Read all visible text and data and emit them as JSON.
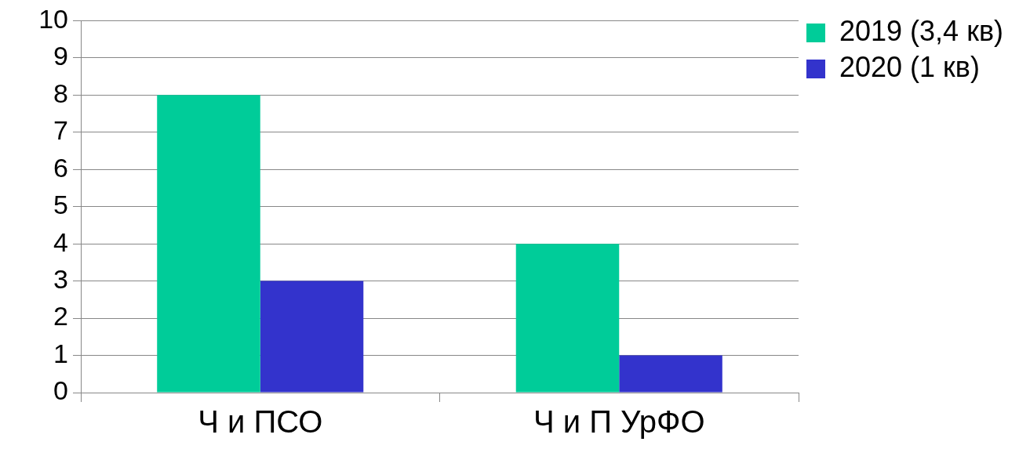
{
  "chart_data": {
    "type": "bar",
    "categories": [
      "Ч и ПСО",
      "Ч и П УрФО"
    ],
    "series": [
      {
        "name": "2019 (3,4 кв)",
        "color": "#00cc99",
        "values": [
          8,
          4
        ]
      },
      {
        "name": "2020 (1 кв)",
        "color": "#3333cc",
        "values": [
          3,
          1
        ]
      }
    ],
    "ylim": [
      0,
      10
    ],
    "yticks": [
      0,
      1,
      2,
      3,
      4,
      5,
      6,
      7,
      8,
      9,
      10
    ],
    "grid": "y",
    "legend": "top right"
  }
}
